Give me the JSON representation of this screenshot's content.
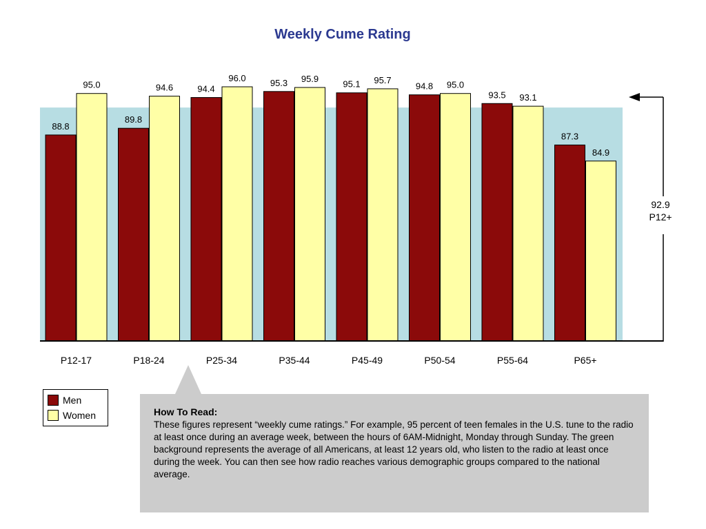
{
  "chart_data": {
    "type": "bar",
    "title": "Weekly Cume Rating",
    "categories": [
      "P12-17",
      "P18-24",
      "P25-34",
      "P35-44",
      "P45-49",
      "P50-54",
      "P55-64",
      "P65+"
    ],
    "series": [
      {
        "name": "Men",
        "color": "#8b0a0a",
        "values": [
          88.8,
          89.8,
          94.4,
          95.3,
          95.1,
          94.8,
          93.5,
          87.3
        ]
      },
      {
        "name": "Women",
        "color": "#ffffa6",
        "values": [
          95.0,
          94.6,
          96.0,
          95.9,
          95.7,
          95.0,
          93.1,
          84.9
        ]
      }
    ],
    "value_labels": {
      "men": [
        "88.8",
        "89.8",
        "94.4",
        "95.3",
        "95.1",
        "94.8",
        "93.5",
        "87.3"
      ],
      "women": [
        "95.0",
        "94.6",
        "96.0",
        "95.9",
        "95.7",
        "95.0",
        "93.1",
        "84.9"
      ]
    },
    "reference": {
      "value": 92.9,
      "value_label": "92.9",
      "group_label": "P12+",
      "color": "#b7dde3"
    },
    "legend_position": "bottom-left",
    "grid": false
  },
  "legend": {
    "men_label": "Men",
    "women_label": "Women"
  },
  "note": {
    "title": "How To Read:",
    "body": "These figures represent “weekly cume ratings.” For example, 95 percent of teen females in the U.S. tune to the radio at least once during an average week, between the hours of 6AM-Midnight, Monday through Sunday. The green background represents the average of all Americans, at least 12 years old, who listen to the radio at least once during the week. You can then see how radio reaches various demographic groups compared to the national average."
  }
}
